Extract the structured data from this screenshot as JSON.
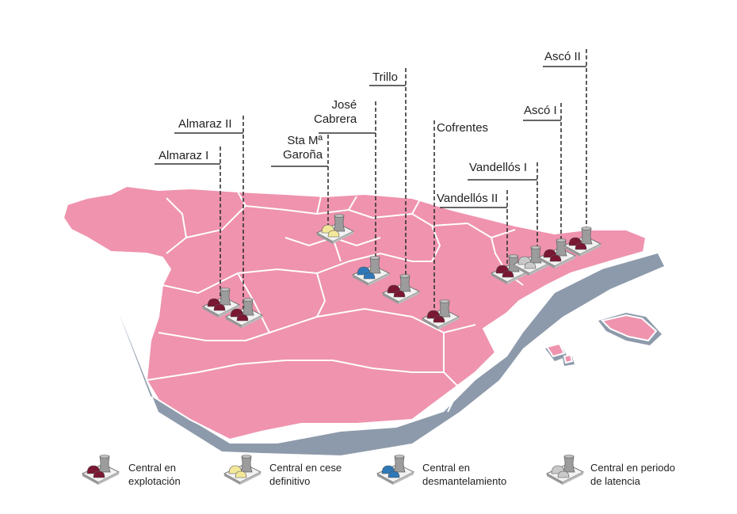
{
  "colors": {
    "region_fill": "#ef93ae",
    "region_border": "#ffffff",
    "shadow": "#8d9aab",
    "explotacion": "#7a1733",
    "cese": "#f3e79a",
    "desmantelamiento": "#2f78b8",
    "latencia": "#c9c9c9"
  },
  "plants": [
    {
      "id": "almaraz-1",
      "name": "Almaraz I",
      "status": "explotacion"
    },
    {
      "id": "almaraz-2",
      "name": "Almaraz II",
      "status": "explotacion"
    },
    {
      "id": "garona",
      "name": "Sta Mª\nGaroña",
      "status": "cese"
    },
    {
      "id": "jose-cabrera",
      "name": "José\nCabrera",
      "status": "desmantelamiento"
    },
    {
      "id": "trillo",
      "name": "Trillo",
      "status": "explotacion"
    },
    {
      "id": "cofrentes",
      "name": "Cofrentes",
      "status": "explotacion"
    },
    {
      "id": "vandellos-2",
      "name": "Vandellós II",
      "status": "explotacion"
    },
    {
      "id": "vandellos-1",
      "name": "Vandellós I",
      "status": "latencia"
    },
    {
      "id": "asco-1",
      "name": "Ascó I",
      "status": "explotacion"
    },
    {
      "id": "asco-2",
      "name": "Ascó II",
      "status": "explotacion"
    }
  ],
  "legend": [
    {
      "status": "explotacion",
      "label": "Central en\nexplotación",
      "icon": "reactor-dark-red-icon"
    },
    {
      "status": "cese",
      "label": "Central en cese\ndefinitivo",
      "icon": "reactor-yellow-icon"
    },
    {
      "status": "desmantelamiento",
      "label": "Central en\ndesmantelamiento",
      "icon": "reactor-blue-icon"
    },
    {
      "status": "latencia",
      "label": "Central en periodo\nde latencia",
      "icon": "reactor-grey-icon"
    }
  ]
}
